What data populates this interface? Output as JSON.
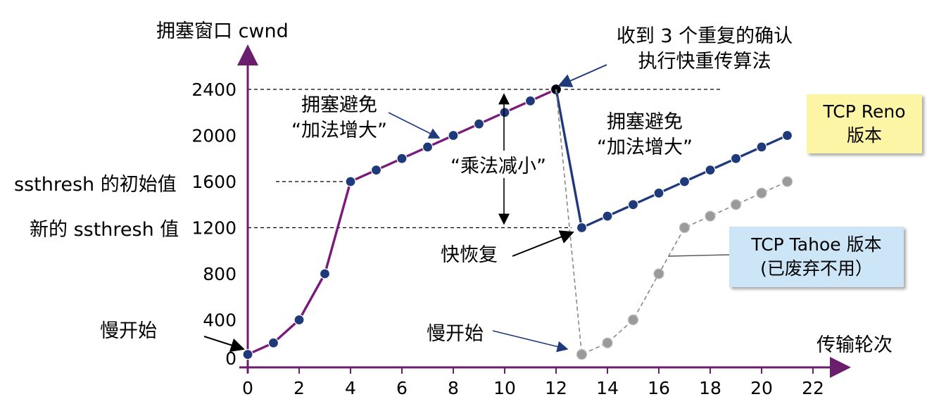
{
  "chart_data": {
    "type": "line",
    "ylabel": "拥塞窗口 cwnd",
    "xlabel": "传输轮次",
    "x_ticks": [
      0,
      2,
      4,
      6,
      8,
      10,
      12,
      14,
      16,
      18,
      20,
      22
    ],
    "y_ticks": [
      0,
      400,
      800,
      1200,
      1600,
      2000,
      2400
    ],
    "xlim": [
      0,
      22
    ],
    "ylim": [
      0,
      2600
    ],
    "series": [
      {
        "name": "TCP Reno 版本",
        "color": "#7b1a7a",
        "x": [
          0,
          1,
          2,
          3,
          4,
          5,
          6,
          7,
          8,
          9,
          10,
          11,
          12
        ],
        "values": [
          100,
          200,
          400,
          800,
          1600,
          1700,
          1800,
          1900,
          2000,
          2100,
          2200,
          2300,
          2400
        ]
      },
      {
        "name": "TCP Reno 版本",
        "color": "#1f3a7a",
        "x": [
          12,
          13,
          14,
          15,
          16,
          17,
          18,
          19,
          20,
          21
        ],
        "values": [
          2400,
          1200,
          1300,
          1400,
          1500,
          1600,
          1700,
          1800,
          1900,
          2000
        ]
      },
      {
        "name": "TCP Tahoe 版本",
        "color": "#8a8a8a",
        "dashed": true,
        "x": [
          12,
          13,
          14,
          15,
          16,
          17,
          18,
          19,
          20,
          21
        ],
        "values": [
          2400,
          100,
          200,
          400,
          800,
          1200,
          1300,
          1400,
          1500,
          1600
        ]
      }
    ],
    "reference_lines": [
      {
        "value": 2400,
        "label": "2400"
      },
      {
        "value": 1600,
        "label": "ssthresh 的初始值"
      },
      {
        "value": 1200,
        "label": "新的 ssthresh 值"
      }
    ]
  },
  "annotations": {
    "slow_start_left": "慢开始",
    "slow_start_right": "慢开始",
    "ca_left_line1": "拥塞避免",
    "ca_left_line2": "“加法增大”",
    "ca_right_line1": "拥塞避免",
    "ca_right_line2": "“加法增大”",
    "mult_decrease": "“乘法减小”",
    "dup_ack_line1": "收到 3 个重复的确认",
    "dup_ack_line2": "执行快重传算法",
    "fast_recovery": "快恢复",
    "reno_box_line1": "TCP Reno",
    "reno_box_line2": "版本",
    "tahoe_box_line1": "TCP Tahoe 版本",
    "tahoe_box_line2": "(已废弃不用）",
    "ssthresh_initial": "ssthresh 的初始值",
    "ssthresh_new": "新的 ssthresh 值"
  },
  "colors": {
    "axis": "#6b1e6b",
    "reno_slowstart": "#7b1a7a",
    "reno_ca": "#1f3a7a",
    "tahoe": "#8a8a8a",
    "reno_box": "#fdf5a6",
    "tahoe_box": "#cce6f8"
  }
}
